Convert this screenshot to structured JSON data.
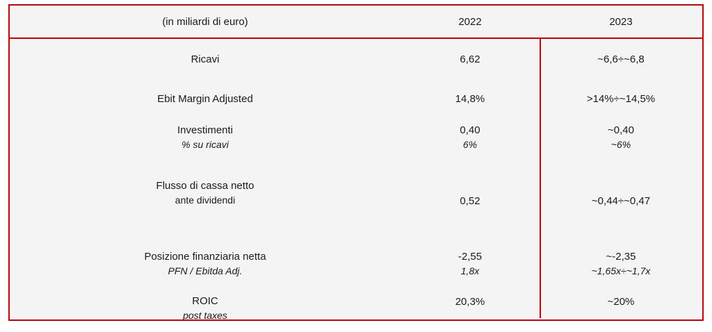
{
  "table": {
    "header": {
      "unit": "(in miliardi di euro)",
      "year_left": "2022",
      "year_right": "2023"
    },
    "rows": [
      {
        "label": "Ricavi",
        "v2022": "6,62",
        "v2023": "~6,6÷~6,8"
      },
      {
        "label": "Ebit Margin Adjusted",
        "v2022": "14,8%",
        "v2023": ">14%÷~14,5%"
      },
      {
        "label": "Investimenti",
        "sublabel": "% su ricavi",
        "v2022": "0,40",
        "sub2022": "6%",
        "v2023": "~0,40",
        "sub2023": "~6%"
      },
      {
        "label": "Flusso di cassa netto",
        "sublabel": "ante dividendi",
        "v2022": "0,52",
        "v2023": "~0,44÷~0,47"
      },
      {
        "label": "Posizione finanziaria netta",
        "sublabel": "PFN / Ebitda Adj.",
        "v2022": "-2,55",
        "sub2022": "1,8x",
        "v2023": "~-2,35",
        "sub2023": "~1,65x÷~1,7x"
      },
      {
        "label": "ROIC",
        "sublabel": "post taxes",
        "v2022": "20,3%",
        "v2023": "~20%"
      }
    ],
    "colors": {
      "border_red": "#d40000",
      "table_background": "#f4f4f4",
      "text": "#1a1a1a"
    }
  }
}
